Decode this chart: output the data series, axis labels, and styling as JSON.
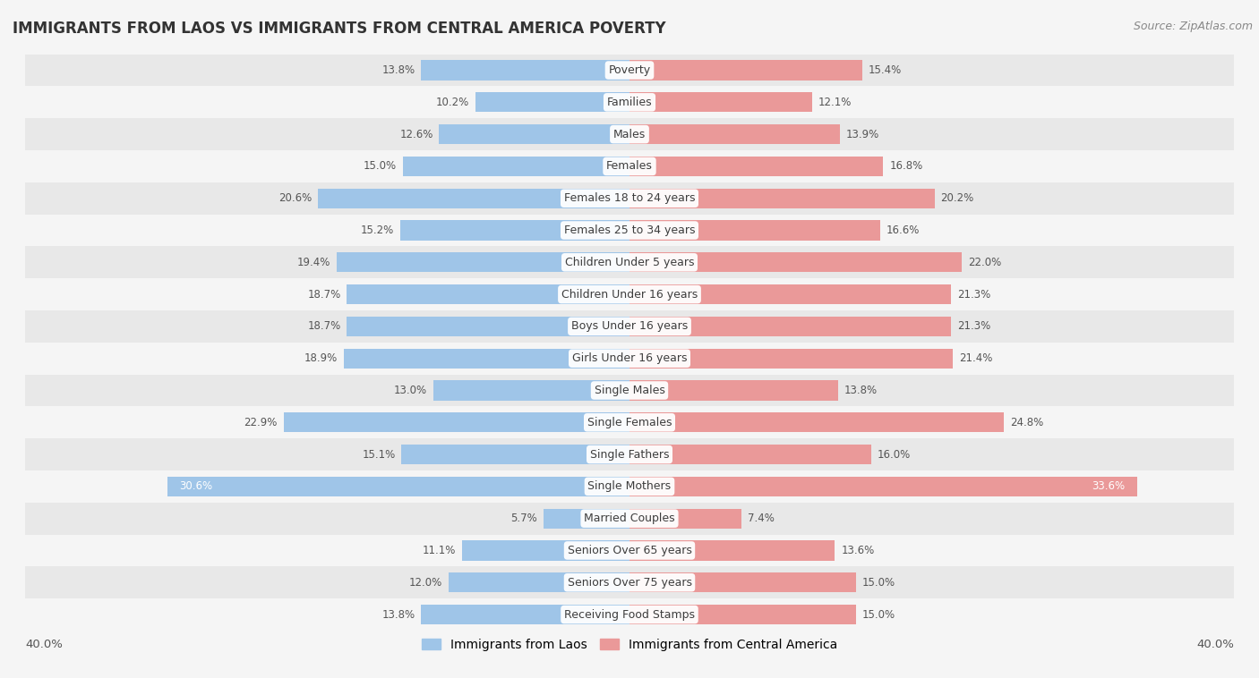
{
  "title": "IMMIGRANTS FROM LAOS VS IMMIGRANTS FROM CENTRAL AMERICA POVERTY",
  "source": "Source: ZipAtlas.com",
  "categories": [
    "Poverty",
    "Families",
    "Males",
    "Females",
    "Females 18 to 24 years",
    "Females 25 to 34 years",
    "Children Under 5 years",
    "Children Under 16 years",
    "Boys Under 16 years",
    "Girls Under 16 years",
    "Single Males",
    "Single Females",
    "Single Fathers",
    "Single Mothers",
    "Married Couples",
    "Seniors Over 65 years",
    "Seniors Over 75 years",
    "Receiving Food Stamps"
  ],
  "laos_values": [
    13.8,
    10.2,
    12.6,
    15.0,
    20.6,
    15.2,
    19.4,
    18.7,
    18.7,
    18.9,
    13.0,
    22.9,
    15.1,
    30.6,
    5.7,
    11.1,
    12.0,
    13.8
  ],
  "central_america_values": [
    15.4,
    12.1,
    13.9,
    16.8,
    20.2,
    16.6,
    22.0,
    21.3,
    21.3,
    21.4,
    13.8,
    24.8,
    16.0,
    33.6,
    7.4,
    13.6,
    15.0,
    15.0
  ],
  "laos_color": "#9fc5e8",
  "central_america_color": "#ea9999",
  "laos_color_dark": "#6fa8dc",
  "central_america_color_dark": "#e06666",
  "row_colors": [
    "#e8e8e8",
    "#f5f5f5"
  ],
  "xlim": 40.0,
  "legend_laos": "Immigrants from Laos",
  "legend_central": "Immigrants from Central America",
  "label_color_outside": "#555555",
  "label_color_inside": "#ffffff",
  "inside_threshold": 28.0,
  "cat_label_fontsize": 9,
  "val_label_fontsize": 8.5
}
